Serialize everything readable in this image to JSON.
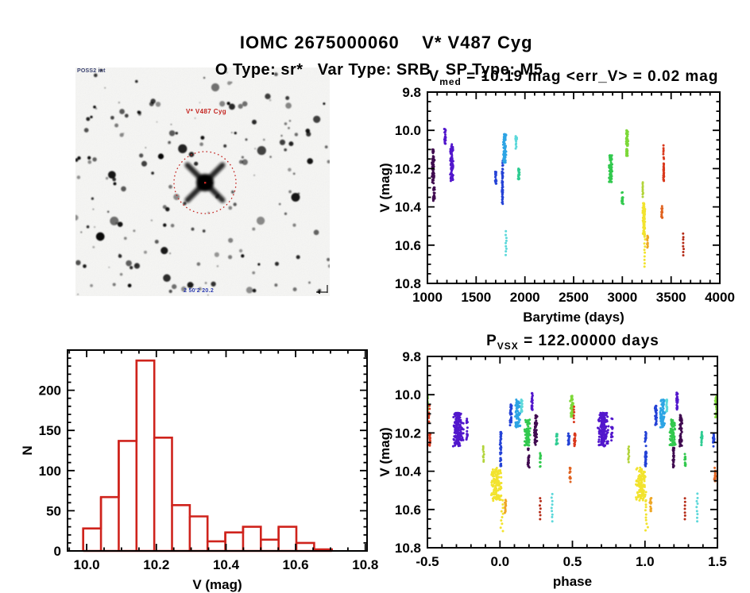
{
  "header": {
    "title": "IOMC 2675000060    V* V487 Cyg",
    "subtitle": "O Type: sr*   Var Type: SRB   SP Type: M5"
  },
  "finder": {
    "survey_label": "POSS2 int",
    "target_label": "V* V487 Cyg",
    "coord_label": "2 50'2 20.2",
    "circle_color": "#c42420"
  },
  "colors": {
    "darkPurple": "#400b50",
    "violet": "#5217cc",
    "blue": "#2442d6",
    "skyBlue": "#2da4e4",
    "cyan": "#5cd8da",
    "tealGreen": "#2ecc92",
    "green": "#32c94e",
    "brightGreen": "#7cd838",
    "yellowGreen": "#b2d43a",
    "yellow": "#f2e32e",
    "orange": "#eea726",
    "rust": "#e06320",
    "red": "#d9391d",
    "darkRed": "#b52c18",
    "histRed": "#cf231c",
    "axis": "#000000"
  },
  "chart_data": [
    {
      "id": "lightcurve",
      "type": "scatter",
      "title": {
        "pre": "V",
        "sub": "med",
        "post": " = 10.19 mag <err_V> = 0.02 mag"
      },
      "v_med_mag": 10.19,
      "err_v_mag": 0.02,
      "xlabel": "Barytime (days)",
      "ylabel": "V (mag)",
      "xlim": [
        1000,
        4000
      ],
      "ylim": [
        9.8,
        10.8
      ],
      "y_axis_inverted": true,
      "xticks": [
        1000,
        1500,
        2000,
        2500,
        3000,
        3500,
        4000
      ],
      "xtick_labels": [
        "1000",
        "1500",
        "2000",
        "2500",
        "3000",
        "3500",
        "4000"
      ],
      "yticks": [
        9.8,
        10.0,
        10.2,
        10.4,
        10.6,
        10.8
      ],
      "ytick_labels": [
        "9.8",
        "10.0",
        "10.2",
        "10.4",
        "10.6",
        "10.8"
      ],
      "x_minor_step": 100,
      "y_minor_step": 0.05,
      "clusters": [
        {
          "t": 1058,
          "m1": 10.1,
          "m2": 10.28,
          "c": "darkPurple",
          "w": 30,
          "n": 60,
          "k": "strip"
        },
        {
          "t": 1066,
          "m1": 10.295,
          "m2": 10.375,
          "c": "darkPurple",
          "w": 22,
          "n": 26,
          "k": "strip"
        },
        {
          "t": 1180,
          "m1": 9.99,
          "m2": 10.07,
          "c": "violet",
          "w": 20,
          "n": 24,
          "k": "strip"
        },
        {
          "t": 1249,
          "m1": 10.07,
          "m2": 10.265,
          "c": "violet",
          "w": 34,
          "n": 95,
          "k": "strip"
        },
        {
          "t": 1700,
          "m1": 10.21,
          "m2": 10.28,
          "c": "blue",
          "w": 16,
          "n": 18,
          "k": "strip"
        },
        {
          "t": 1770,
          "m1": 10.155,
          "m2": 10.385,
          "c": "blue",
          "w": 13,
          "n": 50,
          "k": "strip"
        },
        {
          "t": 1791,
          "m1": 10.02,
          "m2": 10.17,
          "c": "skyBlue",
          "w": 36,
          "n": 90,
          "k": "strip"
        },
        {
          "t": 1807,
          "m1": 10.53,
          "m2": 10.65,
          "c": "cyan",
          "w": 16,
          "n": 9,
          "k": "dots"
        },
        {
          "t": 1910,
          "m1": 10.03,
          "m2": 10.095,
          "c": "cyan",
          "w": 18,
          "n": 16,
          "k": "strip"
        },
        {
          "t": 1938,
          "m1": 10.195,
          "m2": 10.265,
          "c": "tealGreen",
          "w": 20,
          "n": 18,
          "k": "strip"
        },
        {
          "t": 2880,
          "m1": 10.13,
          "m2": 10.27,
          "c": "green",
          "w": 38,
          "n": 85,
          "k": "strip"
        },
        {
          "t": 3000,
          "m1": 10.32,
          "m2": 10.385,
          "c": "green",
          "w": 22,
          "n": 20,
          "k": "strip"
        },
        {
          "t": 3049,
          "m1": 10.0,
          "m2": 10.135,
          "c": "brightGreen",
          "w": 26,
          "n": 55,
          "k": "strip"
        },
        {
          "t": 3211,
          "m1": 10.27,
          "m2": 10.345,
          "c": "yellowGreen",
          "w": 10,
          "n": 9,
          "k": "dots"
        },
        {
          "t": 3223,
          "m1": 10.38,
          "m2": 10.55,
          "c": "yellow",
          "w": 28,
          "n": 75,
          "k": "strip"
        },
        {
          "t": 3230,
          "m1": 10.555,
          "m2": 10.71,
          "c": "yellow",
          "w": 16,
          "n": 10,
          "k": "dots"
        },
        {
          "t": 3258,
          "m1": 10.55,
          "m2": 10.615,
          "c": "orange",
          "w": 14,
          "n": 14,
          "k": "strip"
        },
        {
          "t": 3406,
          "m1": 10.395,
          "m2": 10.46,
          "c": "rust",
          "w": 14,
          "n": 14,
          "k": "strip"
        },
        {
          "t": 3423,
          "m1": 10.08,
          "m2": 10.15,
          "c": "red",
          "w": 10,
          "n": 7,
          "k": "dots"
        },
        {
          "t": 3424,
          "m1": 10.17,
          "m2": 10.27,
          "c": "red",
          "w": 9,
          "n": 28,
          "k": "strip"
        },
        {
          "t": 3626,
          "m1": 10.54,
          "m2": 10.655,
          "c": "darkRed",
          "w": 10,
          "n": 8,
          "k": "dots"
        }
      ]
    },
    {
      "id": "histogram",
      "type": "bar",
      "xlabel": "V (mag)",
      "ylabel": "N",
      "xlim": [
        9.945,
        10.805
      ],
      "ylim": [
        0,
        250
      ],
      "xticks": [
        10.0,
        10.2,
        10.4,
        10.6,
        10.8
      ],
      "xtick_labels": [
        "10.0",
        "10.2",
        "10.4",
        "10.6",
        "10.8"
      ],
      "yticks": [
        0,
        50,
        100,
        150,
        200
      ],
      "ytick_labels": [
        "0",
        "50",
        "100",
        "150",
        "200"
      ],
      "x_minor_step": 0.05,
      "y_minor_step": 10,
      "bin_start": 9.99,
      "bin_width": 0.051,
      "values": [
        28,
        67,
        137,
        237,
        141,
        57,
        43,
        12,
        23,
        30,
        14,
        30,
        10,
        2
      ],
      "outline_color_key": "histRed"
    },
    {
      "id": "phase",
      "type": "scatter",
      "title": {
        "pre": "P",
        "sub": "VSX",
        "post": " = 122.00000 days"
      },
      "period_days": 122.0,
      "xlabel": "phase",
      "ylabel": "V (mag)",
      "xlim": [
        -0.5,
        1.5
      ],
      "ylim": [
        9.8,
        10.8
      ],
      "y_axis_inverted": true,
      "xticks": [
        -0.5,
        0.0,
        0.5,
        1.0,
        1.5
      ],
      "xtick_labels": [
        "-0.5",
        "0.0",
        "0.5",
        "1.0",
        "1.5"
      ],
      "yticks": [
        9.8,
        10.0,
        10.2,
        10.4,
        10.6,
        10.8
      ],
      "ytick_labels": [
        "9.8",
        "10.0",
        "10.2",
        "10.4",
        "10.6",
        "10.8"
      ],
      "x_minor_step": 0.1,
      "y_minor_step": 0.05,
      "repeat_offsets": [
        -1,
        0,
        1
      ],
      "clusters": [
        {
          "p": -0.288,
          "m1": 10.095,
          "m2": 10.27,
          "c": "violet",
          "w": 0.075,
          "n": 170,
          "k": "strip"
        },
        {
          "p": -0.228,
          "m1": 10.12,
          "m2": 10.25,
          "c": "violet",
          "w": 0.012,
          "n": 16,
          "k": "strip"
        },
        {
          "p": -0.113,
          "m1": 10.27,
          "m2": 10.35,
          "c": "yellowGreen",
          "w": 0.012,
          "n": 9,
          "k": "dots"
        },
        {
          "p": -0.025,
          "m1": 10.38,
          "m2": 10.555,
          "c": "yellow",
          "w": 0.08,
          "n": 120,
          "k": "strip"
        },
        {
          "p": 0.012,
          "m1": 10.555,
          "m2": 10.71,
          "c": "yellow",
          "w": 0.03,
          "n": 10,
          "k": "dots"
        },
        {
          "p": 0.038,
          "m1": 10.54,
          "m2": 10.62,
          "c": "orange",
          "w": 0.013,
          "n": 14,
          "k": "strip"
        },
        {
          "p": 0.005,
          "m1": 10.195,
          "m2": 10.375,
          "c": "blue",
          "w": 0.013,
          "n": 40,
          "k": "strip"
        },
        {
          "p": 0.075,
          "m1": 10.05,
          "m2": 10.16,
          "c": "blue",
          "w": 0.016,
          "n": 30,
          "k": "strip"
        },
        {
          "p": 0.122,
          "m1": 10.025,
          "m2": 10.17,
          "c": "skyBlue",
          "w": 0.04,
          "n": 70,
          "k": "strip"
        },
        {
          "p": 0.15,
          "m1": 10.02,
          "m2": 10.1,
          "c": "cyan",
          "w": 0.013,
          "n": 18,
          "k": "strip"
        },
        {
          "p": 0.19,
          "m1": 10.13,
          "m2": 10.265,
          "c": "green",
          "w": 0.045,
          "n": 80,
          "k": "strip"
        },
        {
          "p": 0.197,
          "m1": 10.275,
          "m2": 10.38,
          "c": "darkPurple",
          "w": 0.013,
          "n": 26,
          "k": "strip"
        },
        {
          "p": 0.222,
          "m1": 9.99,
          "m2": 10.08,
          "c": "violet",
          "w": 0.013,
          "n": 22,
          "k": "strip"
        },
        {
          "p": 0.247,
          "m1": 10.105,
          "m2": 10.27,
          "c": "darkPurple",
          "w": 0.022,
          "n": 55,
          "k": "strip"
        },
        {
          "p": 0.278,
          "m1": 10.305,
          "m2": 10.38,
          "c": "green",
          "w": 0.011,
          "n": 13,
          "k": "strip"
        },
        {
          "p": 0.278,
          "m1": 10.54,
          "m2": 10.65,
          "c": "darkRed",
          "w": 0.011,
          "n": 7,
          "k": "dots"
        },
        {
          "p": 0.36,
          "m1": 10.52,
          "m2": 10.66,
          "c": "cyan",
          "w": 0.013,
          "n": 9,
          "k": "dots"
        },
        {
          "p": 0.392,
          "m1": 10.195,
          "m2": 10.265,
          "c": "tealGreen",
          "w": 0.013,
          "n": 15,
          "k": "strip"
        },
        {
          "p": 0.474,
          "m1": 10.2,
          "m2": 10.27,
          "c": "blue",
          "w": 0.012,
          "n": 16,
          "k": "strip"
        },
        {
          "p": 0.483,
          "m1": 10.38,
          "m2": 10.46,
          "c": "rust",
          "w": 0.012,
          "n": 12,
          "k": "strip"
        },
        {
          "p": 0.497,
          "m1": 10.0,
          "m2": 10.125,
          "c": "brightGreen",
          "w": 0.027,
          "n": 48,
          "k": "strip"
        },
        {
          "p": 0.512,
          "m1": 10.06,
          "m2": 10.14,
          "c": "red",
          "w": 0.011,
          "n": 6,
          "k": "dots"
        },
        {
          "p": 0.516,
          "m1": 10.2,
          "m2": 10.27,
          "c": "red",
          "w": 0.011,
          "n": 20,
          "k": "strip"
        }
      ]
    }
  ]
}
